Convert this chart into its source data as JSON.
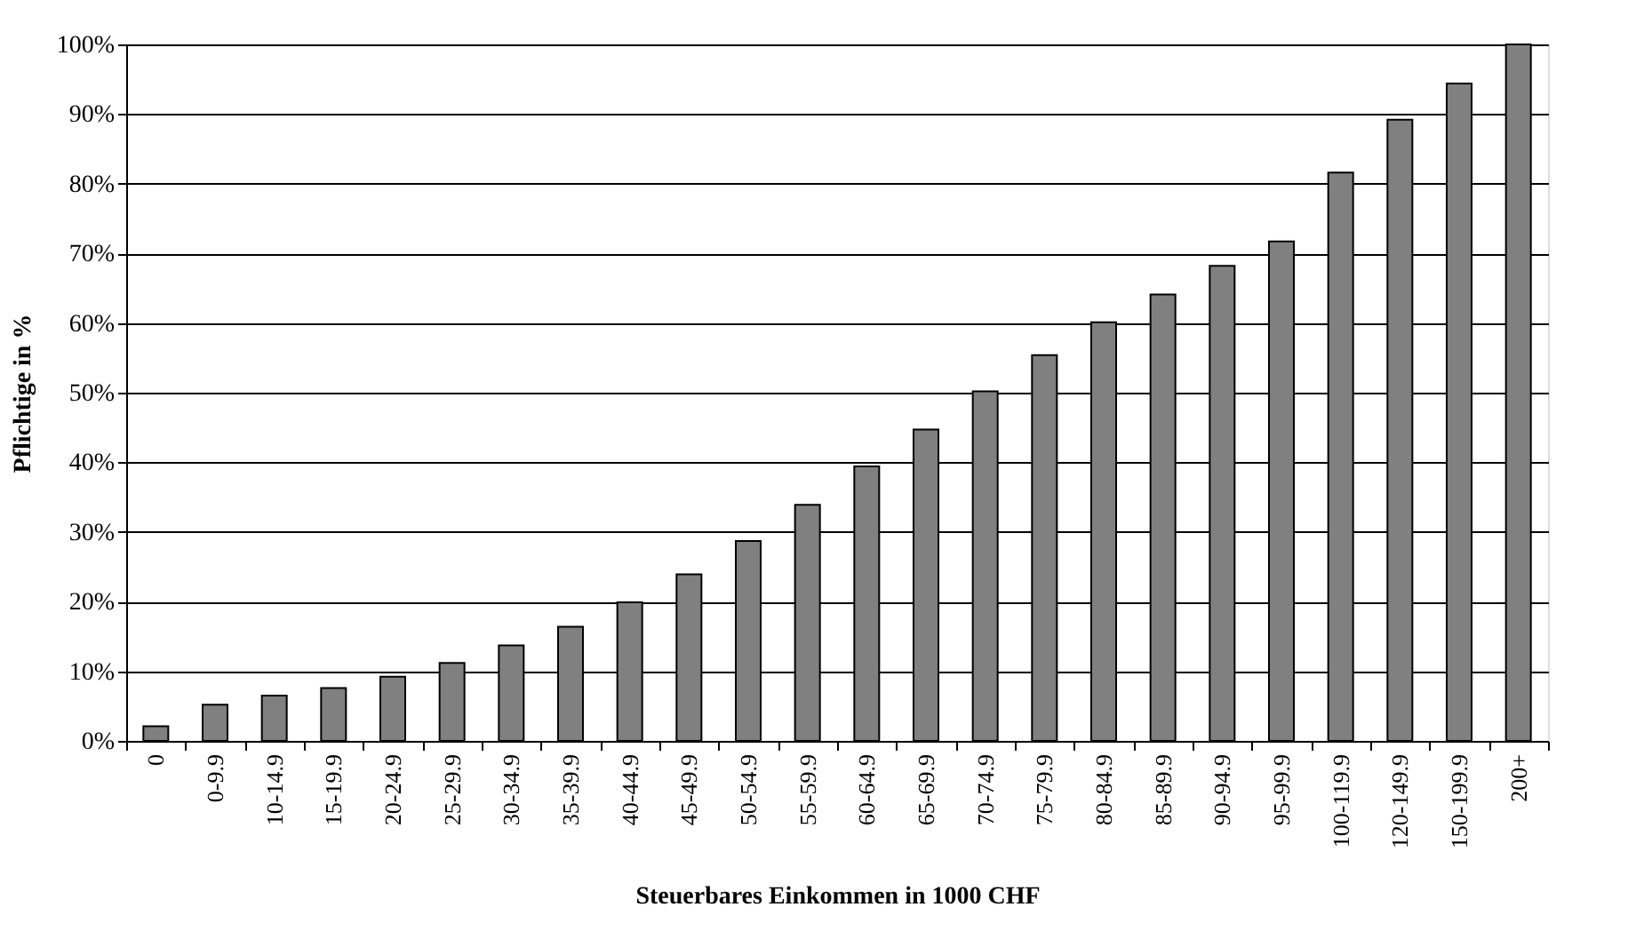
{
  "chart_data": {
    "type": "bar",
    "xlabel": "Steuerbares Einkommen in 1000 CHF",
    "ylabel": "Pflichtige in %",
    "categories": [
      "0",
      "0-9.9",
      "10-14.9",
      "15-19.9",
      "20-24.9",
      "25-29.9",
      "30-34.9",
      "35-39.9",
      "40-44.9",
      "45-49.9",
      "50-54.9",
      "55-59.9",
      "60-64.9",
      "65-69.9",
      "70-74.9",
      "75-79.9",
      "80-84.9",
      "85-89.9",
      "90-94.9",
      "95-99.9",
      "100-119.9",
      "120-149.9",
      "150-199.9",
      "200+"
    ],
    "values": [
      2.1,
      5.2,
      6.5,
      7.6,
      9.2,
      11.2,
      13.7,
      16.4,
      19.9,
      23.9,
      28.7,
      33.9,
      39.4,
      44.7,
      50.2,
      55.4,
      60.1,
      64.1,
      68.2,
      71.7,
      81.6,
      89.2,
      94.4,
      100
    ],
    "color": "#808080",
    "ylim": [
      0,
      100
    ],
    "yticks": [
      {
        "value": 0,
        "label": "0%"
      },
      {
        "value": 10,
        "label": "10%"
      },
      {
        "value": 20,
        "label": "20%"
      },
      {
        "value": 30,
        "label": "30%"
      },
      {
        "value": 40,
        "label": "40%"
      },
      {
        "value": 50,
        "label": "50%"
      },
      {
        "value": 60,
        "label": "60%"
      },
      {
        "value": 70,
        "label": "70%"
      },
      {
        "value": 80,
        "label": "80%"
      },
      {
        "value": 90,
        "label": "90%"
      },
      {
        "value": 100,
        "label": "100%"
      }
    ],
    "grid": "y"
  }
}
